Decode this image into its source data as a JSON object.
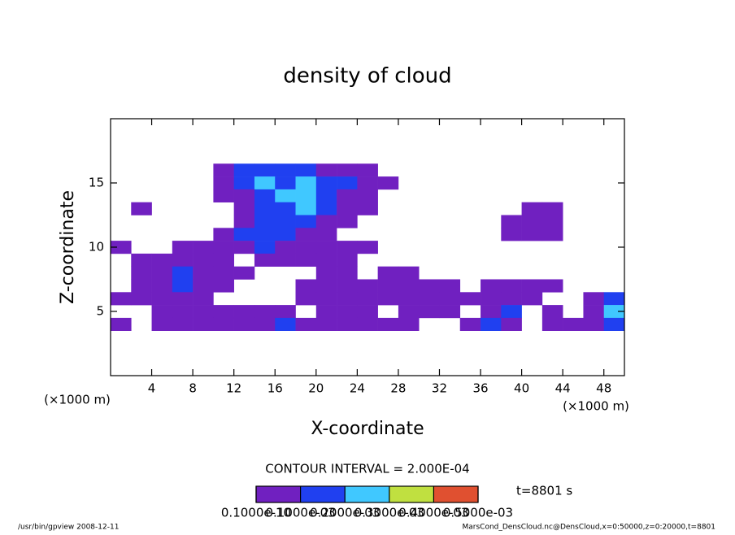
{
  "chart_data": {
    "type": "contour",
    "title": "density of cloud",
    "x_label": "X-coordinate",
    "y_label": "Z-coordinate",
    "x_unit": "(×1000 m)",
    "y_unit": "(×1000 m)",
    "xlim": [
      0,
      50
    ],
    "xticks": [
      4,
      8,
      12,
      16,
      20,
      24,
      28,
      32,
      36,
      40,
      44,
      48
    ],
    "ylim": [
      0,
      20
    ],
    "yticks": [
      5,
      10,
      15
    ],
    "contour_interval": "CONTOUR INTERVAL = 2.000E-04",
    "time_label": "t=8801 s",
    "footer_left": "/usr/bin/gpview  2008-12-11",
    "footer_right": "MarsCond_DensCloud.nc@DensCloud,x=0:50000,z=0:20000,t=8801",
    "colorbar": {
      "levels": [
        {
          "value": 1e-11,
          "label": "0.1000e-10"
        },
        {
          "value": 0.0001,
          "label": "0.1000e-03"
        },
        {
          "value": 0.0002,
          "label": "0.2000e-03"
        },
        {
          "value": 0.0003,
          "label": "0.3000e-03"
        },
        {
          "value": 0.0004,
          "label": "0.4000e-03"
        },
        {
          "value": 0.0005,
          "label": "0.5000e-03"
        }
      ],
      "colors": [
        "#7020c0",
        "#2040f0",
        "#40c8ff",
        "#c0e040",
        "#e05030"
      ]
    },
    "x": [
      1,
      3,
      5,
      7,
      9,
      11,
      13,
      15,
      17,
      19,
      21,
      23,
      25,
      27,
      29,
      31,
      33,
      35,
      37,
      39,
      41,
      43,
      45,
      47,
      49
    ],
    "y": [
      16,
      15,
      14,
      13,
      12,
      11,
      10,
      9,
      8,
      7,
      6,
      5,
      4
    ],
    "z": [
      [
        0,
        0,
        0,
        0,
        0,
        5e-05,
        0.00015,
        0.00015,
        0.00015,
        0.00015,
        5e-05,
        5e-05,
        5e-05,
        0,
        0,
        0,
        0,
        0,
        0,
        0,
        0,
        0,
        0,
        0,
        0
      ],
      [
        0,
        0,
        0,
        0,
        0,
        5e-05,
        0.00015,
        0.00025,
        0.00015,
        0.00025,
        0.00015,
        0.00015,
        5e-05,
        5e-05,
        0,
        0,
        0,
        0,
        0,
        0,
        0,
        0,
        0,
        0,
        0
      ],
      [
        0,
        0,
        0,
        0,
        0,
        5e-05,
        5e-05,
        0.00015,
        0.00025,
        0.00025,
        0.00015,
        5e-05,
        5e-05,
        0,
        0,
        0,
        0,
        0,
        0,
        0,
        0,
        0,
        0,
        0,
        0
      ],
      [
        0,
        5e-05,
        0,
        0,
        0,
        0,
        5e-05,
        0.00015,
        0.00015,
        0.00025,
        0.00015,
        5e-05,
        5e-05,
        0,
        0,
        0,
        0,
        0,
        0,
        0,
        5e-05,
        5e-05,
        0,
        0,
        0
      ],
      [
        0,
        0,
        0,
        0,
        0,
        0,
        5e-05,
        0.00015,
        0.00015,
        0.00015,
        5e-05,
        5e-05,
        0,
        0,
        0,
        0,
        0,
        0,
        0,
        5e-05,
        5e-05,
        5e-05,
        0,
        0,
        0
      ],
      [
        0,
        0,
        0,
        0,
        0,
        5e-05,
        0.00015,
        0.00015,
        0.00015,
        5e-05,
        5e-05,
        0,
        0,
        0,
        0,
        0,
        0,
        0,
        0,
        5e-05,
        5e-05,
        5e-05,
        0,
        0,
        0
      ],
      [
        5e-05,
        0,
        0,
        5e-05,
        5e-05,
        5e-05,
        5e-05,
        0.00015,
        5e-05,
        5e-05,
        5e-05,
        5e-05,
        5e-05,
        0,
        0,
        0,
        0,
        0,
        0,
        0,
        0,
        0,
        0,
        0,
        0
      ],
      [
        0,
        5e-05,
        5e-05,
        5e-05,
        5e-05,
        5e-05,
        0,
        5e-05,
        5e-05,
        5e-05,
        5e-05,
        5e-05,
        0,
        0,
        0,
        0,
        0,
        0,
        0,
        0,
        0,
        0,
        0,
        0,
        0
      ],
      [
        0,
        5e-05,
        5e-05,
        0.00015,
        5e-05,
        5e-05,
        5e-05,
        0,
        0,
        0,
        5e-05,
        5e-05,
        0,
        5e-05,
        5e-05,
        0,
        0,
        0,
        0,
        0,
        0,
        0,
        0,
        0,
        0
      ],
      [
        0,
        5e-05,
        5e-05,
        0.00015,
        5e-05,
        5e-05,
        0,
        0,
        0,
        5e-05,
        5e-05,
        5e-05,
        5e-05,
        5e-05,
        5e-05,
        5e-05,
        5e-05,
        0,
        5e-05,
        5e-05,
        5e-05,
        5e-05,
        0,
        0,
        0
      ],
      [
        5e-05,
        5e-05,
        5e-05,
        5e-05,
        5e-05,
        0,
        0,
        0,
        0,
        5e-05,
        5e-05,
        5e-05,
        5e-05,
        5e-05,
        5e-05,
        5e-05,
        5e-05,
        5e-05,
        5e-05,
        5e-05,
        5e-05,
        0,
        0,
        5e-05,
        0.00015
      ],
      [
        0,
        0,
        5e-05,
        5e-05,
        5e-05,
        5e-05,
        5e-05,
        5e-05,
        5e-05,
        0,
        5e-05,
        5e-05,
        5e-05,
        0,
        5e-05,
        5e-05,
        5e-05,
        0,
        5e-05,
        0.00015,
        0,
        5e-05,
        0,
        5e-05,
        0.00025
      ],
      [
        5e-05,
        0,
        5e-05,
        5e-05,
        5e-05,
        5e-05,
        5e-05,
        5e-05,
        0.00015,
        5e-05,
        5e-05,
        5e-05,
        5e-05,
        5e-05,
        5e-05,
        0,
        0,
        5e-05,
        0.00015,
        5e-05,
        0,
        5e-05,
        5e-05,
        5e-05,
        0.00015
      ]
    ]
  }
}
